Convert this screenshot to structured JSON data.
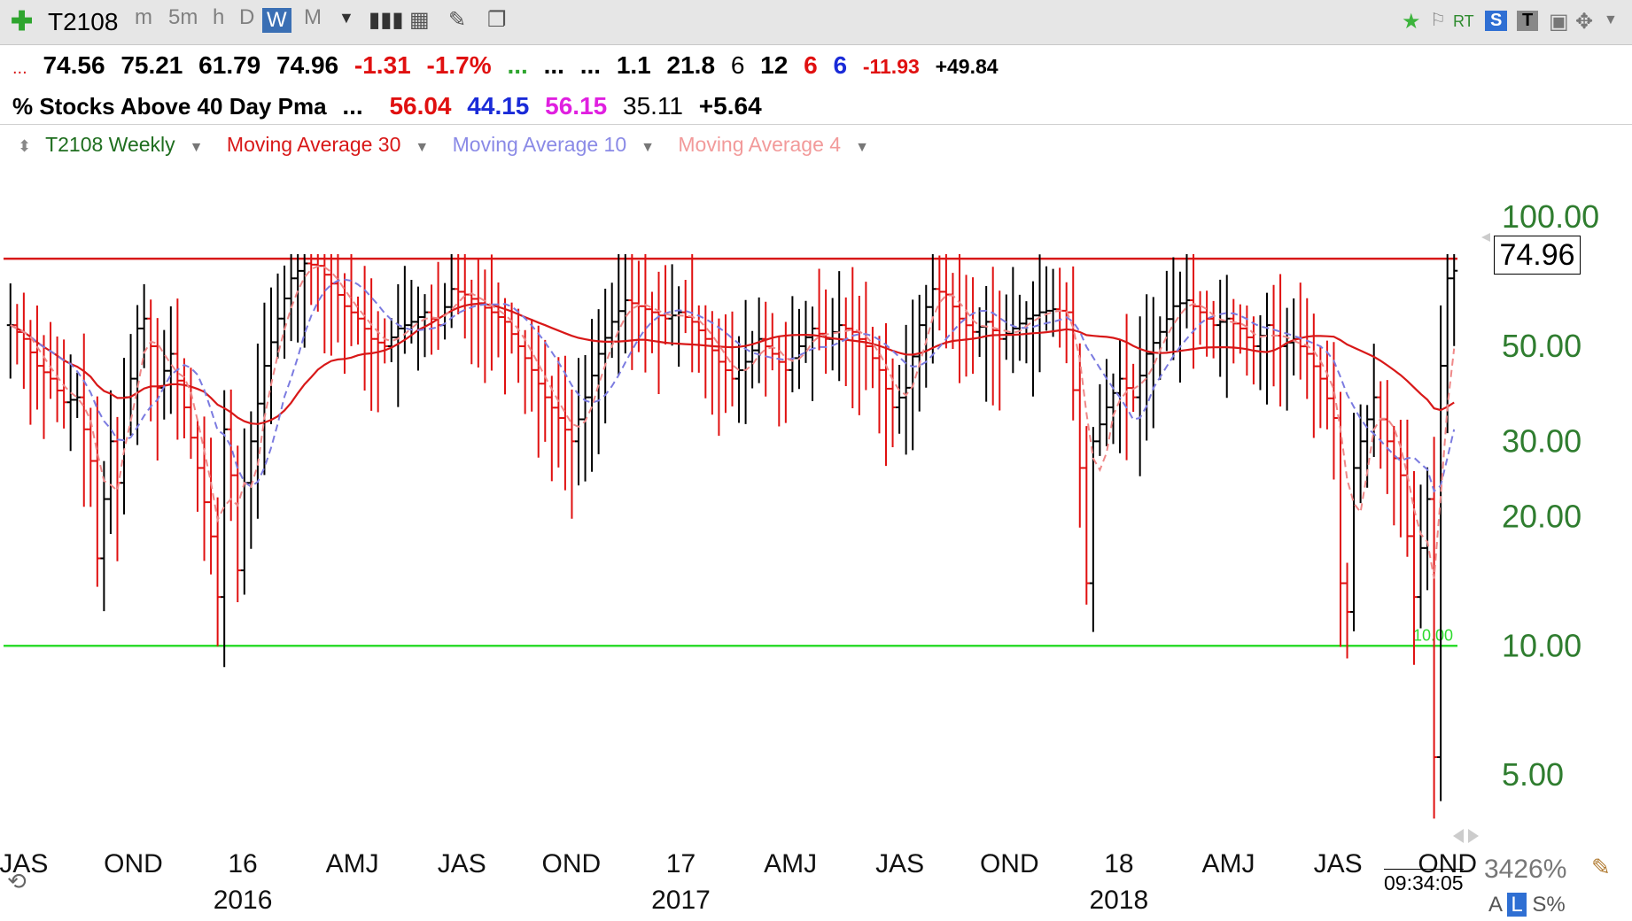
{
  "toolbar": {
    "symbol": "T2108",
    "timeframes": [
      "m",
      "5m",
      "h",
      "D",
      "W",
      "M"
    ],
    "active_timeframe": "W",
    "right_labels": {
      "rt": "RT",
      "s": "S",
      "t": "T"
    }
  },
  "quote_line1": {
    "prefix": "...",
    "open": "74.56",
    "high": "75.21",
    "low": "61.79",
    "close": "74.96",
    "change": "-1.31",
    "change_pct": "-1.7%",
    "dots1": "...",
    "dots2": "...",
    "dots3": "...",
    "v1": "1.1",
    "v2": "21.8",
    "v3": "6",
    "v4": "12",
    "v5": "6",
    "v6": "6",
    "v7": "-11.93",
    "v8": "+49.84"
  },
  "quote_line2": {
    "name": "% Stocks Above 40 Day Pma",
    "dots": "...",
    "ma30": "56.04",
    "ma10": "44.15",
    "ma4": "56.15",
    "other": "35.11",
    "diff": "+5.64"
  },
  "legend": {
    "main": "T2108 Weekly",
    "ma30": "Moving Average 30",
    "ma10": "Moving Average 10",
    "ma4": "Moving Average 4"
  },
  "price_box": "74.96",
  "green_line_label": "10.00",
  "clock": "09:34:05",
  "zoom": "3426%",
  "modes": {
    "a": "A",
    "l": "L",
    "s": "S%"
  },
  "colors": {
    "up": "#000000",
    "down": "#e01010",
    "ma30": "#d81818",
    "ma10": "#7b7be0",
    "ma4": "#ef8888",
    "upper_line": "#d81818",
    "lower_line": "#2edb2e",
    "axis_text": "#2f7d2f"
  },
  "chart_data": {
    "type": "ohlc",
    "scale": "log",
    "ylim": [
      3.5,
      150
    ],
    "y_ticks": [
      "100.00",
      "50.00",
      "30.00",
      "20.00",
      "10.00",
      "5.00"
    ],
    "hlines": [
      80,
      10
    ],
    "x_period_labels": [
      "JAS",
      "OND",
      "16",
      "AMJ",
      "JAS",
      "OND",
      "17",
      "AMJ",
      "JAS",
      "OND",
      "18",
      "AMJ",
      "JAS",
      "OND"
    ],
    "x_year_labels": [
      "2016",
      "2017",
      "2018"
    ],
    "legend": [
      "T2108 Weekly",
      "Moving Average 30",
      "Moving Average 10",
      "Moving Average 4"
    ],
    "anchors": [
      [
        0,
        56
      ],
      [
        2,
        52
      ],
      [
        4,
        45
      ],
      [
        6,
        42
      ],
      [
        8,
        37
      ],
      [
        10,
        38
      ],
      [
        11,
        32
      ],
      [
        12,
        27
      ],
      [
        13,
        16
      ],
      [
        14,
        22
      ],
      [
        15,
        30
      ],
      [
        16,
        24
      ],
      [
        17,
        38
      ],
      [
        18,
        42
      ],
      [
        19,
        55
      ],
      [
        20,
        58
      ],
      [
        21,
        50
      ],
      [
        22,
        40
      ],
      [
        24,
        48
      ],
      [
        26,
        36
      ],
      [
        28,
        26
      ],
      [
        30,
        18
      ],
      [
        31,
        13
      ],
      [
        32,
        32
      ],
      [
        33,
        25
      ],
      [
        34,
        15
      ],
      [
        35,
        24
      ],
      [
        36,
        30
      ],
      [
        38,
        45
      ],
      [
        40,
        58
      ],
      [
        42,
        72
      ],
      [
        44,
        78
      ],
      [
        46,
        77
      ],
      [
        48,
        70
      ],
      [
        50,
        62
      ],
      [
        52,
        58
      ],
      [
        54,
        52
      ],
      [
        56,
        50
      ],
      [
        58,
        55
      ],
      [
        60,
        57
      ],
      [
        62,
        60
      ],
      [
        64,
        56
      ],
      [
        66,
        68
      ],
      [
        68,
        66
      ],
      [
        70,
        63
      ],
      [
        72,
        60
      ],
      [
        74,
        57
      ],
      [
        76,
        50
      ],
      [
        78,
        44
      ],
      [
        80,
        38
      ],
      [
        82,
        34
      ],
      [
        84,
        30
      ],
      [
        86,
        38
      ],
      [
        88,
        48
      ],
      [
        90,
        57
      ],
      [
        92,
        64
      ],
      [
        94,
        62
      ],
      [
        96,
        60
      ],
      [
        98,
        58
      ],
      [
        100,
        60
      ],
      [
        102,
        57
      ],
      [
        104,
        52
      ],
      [
        106,
        46
      ],
      [
        108,
        42
      ],
      [
        110,
        46
      ],
      [
        112,
        52
      ],
      [
        114,
        48
      ],
      [
        116,
        44
      ],
      [
        118,
        50
      ],
      [
        120,
        55
      ],
      [
        122,
        52
      ],
      [
        124,
        56
      ],
      [
        126,
        54
      ],
      [
        128,
        50
      ],
      [
        130,
        44
      ],
      [
        132,
        36
      ],
      [
        134,
        40
      ],
      [
        136,
        56
      ],
      [
        138,
        68
      ],
      [
        140,
        66
      ],
      [
        142,
        58
      ],
      [
        144,
        54
      ],
      [
        146,
        57
      ],
      [
        148,
        52
      ],
      [
        150,
        55
      ],
      [
        152,
        58
      ],
      [
        154,
        60
      ],
      [
        156,
        61
      ],
      [
        158,
        60
      ],
      [
        160,
        26
      ],
      [
        161,
        14
      ],
      [
        162,
        30
      ],
      [
        164,
        36
      ],
      [
        166,
        42
      ],
      [
        168,
        38
      ],
      [
        170,
        48
      ],
      [
        172,
        54
      ],
      [
        174,
        62
      ],
      [
        176,
        64
      ],
      [
        178,
        60
      ],
      [
        180,
        56
      ],
      [
        182,
        58
      ],
      [
        184,
        55
      ],
      [
        186,
        50
      ],
      [
        188,
        56
      ],
      [
        190,
        50
      ],
      [
        192,
        52
      ],
      [
        194,
        48
      ],
      [
        196,
        42
      ],
      [
        198,
        34
      ],
      [
        199,
        14
      ],
      [
        200,
        12
      ],
      [
        201,
        26
      ],
      [
        202,
        30
      ],
      [
        204,
        38
      ],
      [
        206,
        30
      ],
      [
        208,
        25
      ],
      [
        210,
        13
      ],
      [
        212,
        22
      ],
      [
        213,
        5.5
      ],
      [
        214,
        45
      ],
      [
        215,
        72
      ],
      [
        216,
        75
      ]
    ]
  }
}
